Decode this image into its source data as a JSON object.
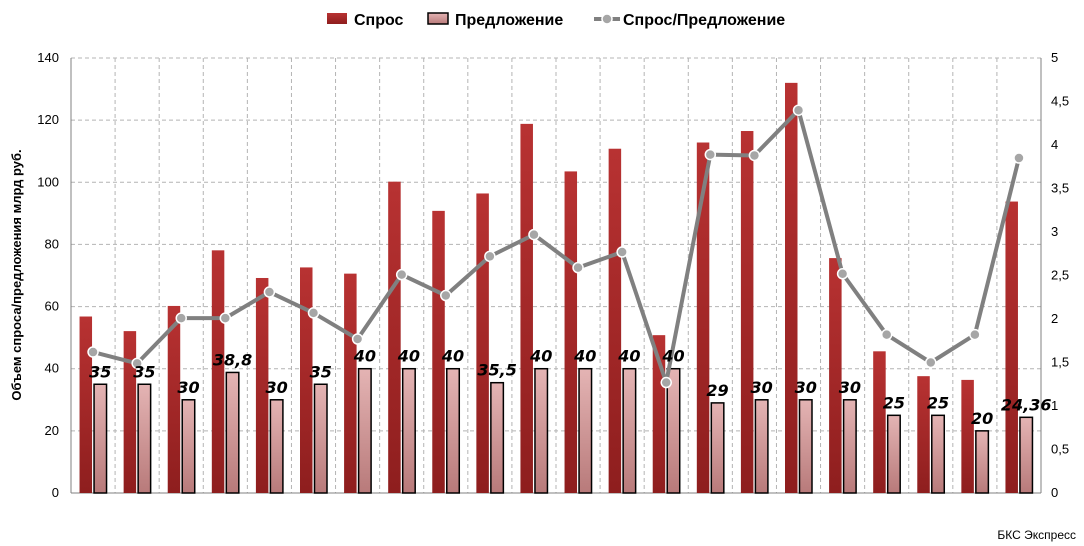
{
  "chart_data": {
    "type": "bar",
    "categories": [
      "",
      "",
      "",
      "",
      "",
      "",
      "",
      "",
      "",
      "",
      "",
      "",
      "",
      "",
      "",
      "",
      "",
      "",
      "",
      "",
      "",
      ""
    ],
    "series": [
      {
        "name": "Спрос",
        "type": "bar",
        "axis": "left",
        "color": "#a52a2a",
        "values": [
          56.8,
          52.1,
          60.2,
          78.1,
          69.2,
          72.6,
          70.6,
          100.2,
          90.8,
          96.4,
          118.8,
          103.5,
          110.8,
          50.8,
          112.8,
          116.5,
          132.0,
          75.6,
          45.6,
          37.6,
          36.4,
          93.8
        ]
      },
      {
        "name": "Предложение",
        "type": "bar",
        "axis": "left",
        "color": "#d9a0a0",
        "values": [
          35,
          35,
          30,
          38.8,
          30,
          35,
          40,
          40,
          40,
          35.5,
          40,
          40,
          40,
          40,
          29,
          30,
          30,
          30,
          25,
          25,
          20,
          24.36
        ],
        "labels": [
          "35",
          "35",
          "30",
          "38,8",
          "30",
          "35",
          "40",
          "40",
          "40",
          "35,5",
          "40",
          "40",
          "40",
          "40",
          "29",
          "30",
          "30",
          "30",
          "25",
          "25",
          "20",
          "24,36"
        ]
      },
      {
        "name": "Спрос/Предложение",
        "type": "line",
        "axis": "right",
        "color": "#808080",
        "values": [
          1.62,
          1.49,
          2.01,
          2.01,
          2.31,
          2.07,
          1.77,
          2.51,
          2.27,
          2.72,
          2.97,
          2.59,
          2.77,
          1.27,
          3.89,
          3.88,
          4.4,
          2.52,
          1.82,
          1.5,
          1.82,
          3.85
        ]
      }
    ],
    "ylabel": "Объем спроса/предложения млрд руб.",
    "ylim": [
      0,
      140
    ],
    "yticks": [
      "0",
      "20",
      "40",
      "60",
      "80",
      "100",
      "120",
      "140"
    ],
    "y2lim": [
      0,
      5
    ],
    "y2ticks": [
      "0",
      "0,5",
      "1",
      "1,5",
      "2",
      "2,5",
      "3",
      "3,5",
      "4",
      "4,5",
      "5"
    ],
    "grid": true,
    "legend_position": "top",
    "source": "БКС Экспресс"
  }
}
